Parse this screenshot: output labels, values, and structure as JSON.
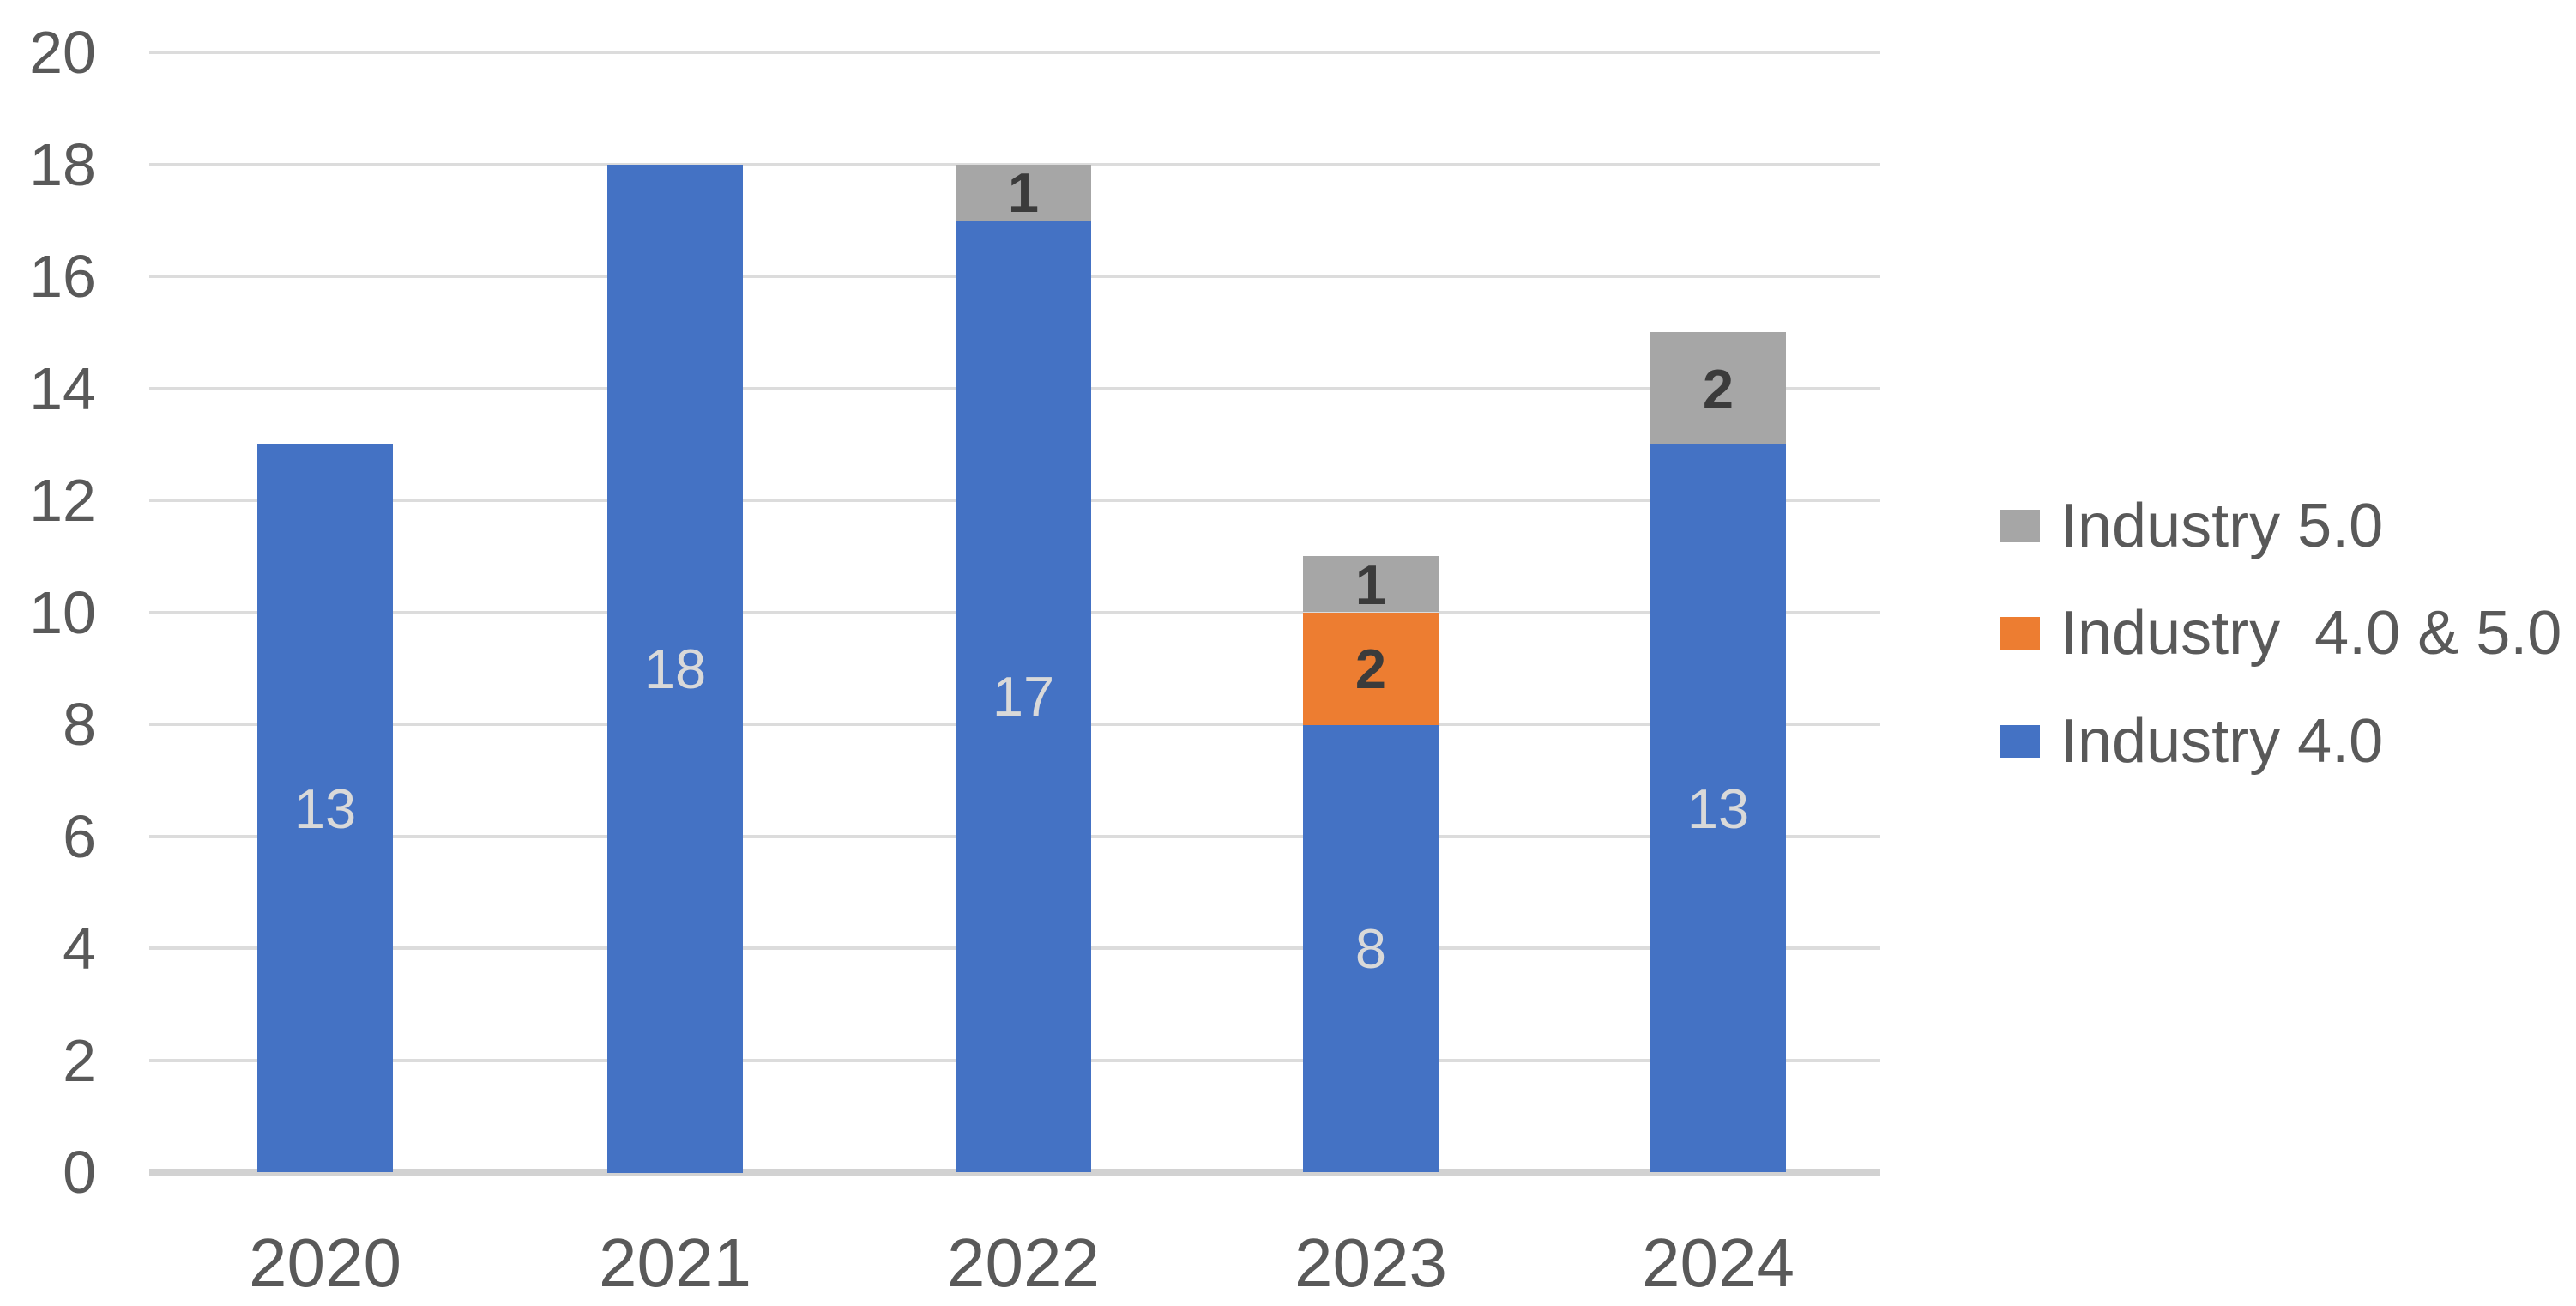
{
  "chart_data": {
    "type": "bar",
    "stacked": true,
    "categories": [
      "2020",
      "2021",
      "2022",
      "2023",
      "2024"
    ],
    "series": [
      {
        "name": "Industry 4.0",
        "color": "#4472C4",
        "label_style": "light",
        "values": [
          13,
          18,
          17,
          8,
          13
        ]
      },
      {
        "name": "Industry  4.0 & 5.0",
        "color": "#ED7D31",
        "label_style": "dark",
        "values": [
          0,
          0,
          0,
          2,
          0
        ]
      },
      {
        "name": "Industry 5.0",
        "color": "#A6A6A6",
        "label_style": "dark",
        "values": [
          0,
          0,
          1,
          1,
          2
        ]
      }
    ],
    "y_ticks": [
      "0",
      "2",
      "4",
      "6",
      "8",
      "10",
      "12",
      "14",
      "16",
      "18",
      "20"
    ],
    "ylim": [
      0,
      20
    ],
    "grid": true,
    "xlabel": "",
    "ylabel": "",
    "title": "",
    "legend_position": "right",
    "legend": [
      {
        "label": "Industry 5.0",
        "color": "#A6A6A6"
      },
      {
        "label": "Industry  4.0 & 5.0",
        "color": "#ED7D31"
      },
      {
        "label": "Industry 4.0",
        "color": "#4472C4"
      }
    ]
  },
  "colors": {
    "background": "#FFFFFF",
    "gridline": "#DCDCDC",
    "baseline": "#D2D2D2",
    "axis_text": "#595959",
    "legend_text": "#595959",
    "label_light": "#D9D9D9",
    "label_dark": "#3B3B3B"
  }
}
